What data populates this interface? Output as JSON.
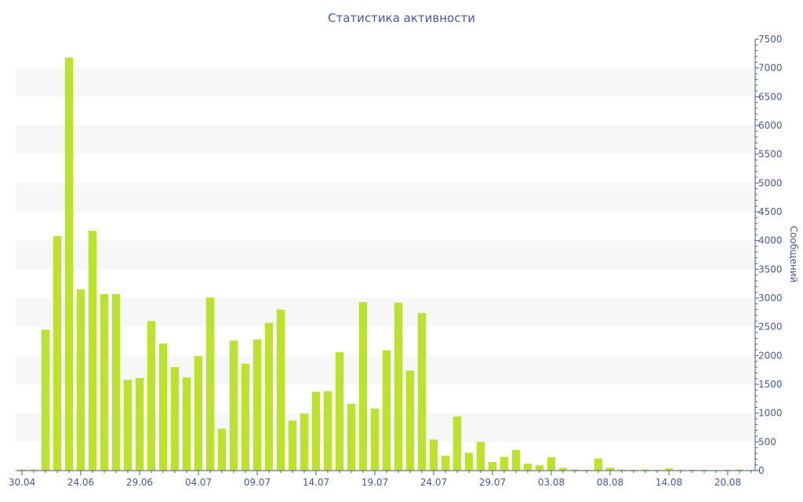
{
  "chart_data": {
    "type": "bar",
    "title": "Статистика активности",
    "xlabel": "",
    "ylabel": "Сообщений",
    "ylim": [
      0,
      7500
    ],
    "y_axis_side": "right",
    "grid": "alternating horizontal bands",
    "legend": "none",
    "bar_color": "#bde12f",
    "band_color": "#f7f7f7",
    "text_color": "#4a5a8e",
    "yticks": [
      0,
      500,
      1000,
      1500,
      2000,
      2500,
      3000,
      3500,
      4000,
      4500,
      5000,
      5500,
      6000,
      6500,
      7000,
      7500
    ],
    "xtick_labels": [
      {
        "label": "30.04",
        "index": 0
      },
      {
        "label": "24.06",
        "index": 5
      },
      {
        "label": "29.06",
        "index": 10
      },
      {
        "label": "04.07",
        "index": 15
      },
      {
        "label": "09.07",
        "index": 20
      },
      {
        "label": "14.07",
        "index": 25
      },
      {
        "label": "19.07",
        "index": 30
      },
      {
        "label": "24.07",
        "index": 35
      },
      {
        "label": "29.07",
        "index": 40
      },
      {
        "label": "03.08",
        "index": 45
      },
      {
        "label": "08.08",
        "index": 50
      },
      {
        "label": "14.08",
        "index": 55
      },
      {
        "label": "20.08",
        "index": 60
      }
    ],
    "values": [
      20,
      20,
      2450,
      4080,
      7180,
      3150,
      4170,
      3070,
      3070,
      1580,
      1610,
      2600,
      2210,
      1800,
      1620,
      1990,
      3010,
      730,
      2260,
      1860,
      2280,
      2570,
      2800,
      870,
      990,
      1370,
      1380,
      2060,
      1160,
      2930,
      1080,
      2090,
      2920,
      1740,
      2740,
      540,
      260,
      940,
      310,
      500,
      150,
      240,
      360,
      120,
      90,
      230,
      50,
      20,
      15,
      210,
      50,
      20,
      15,
      20,
      15,
      40,
      15,
      15,
      15,
      10,
      15,
      20,
      10
    ]
  }
}
